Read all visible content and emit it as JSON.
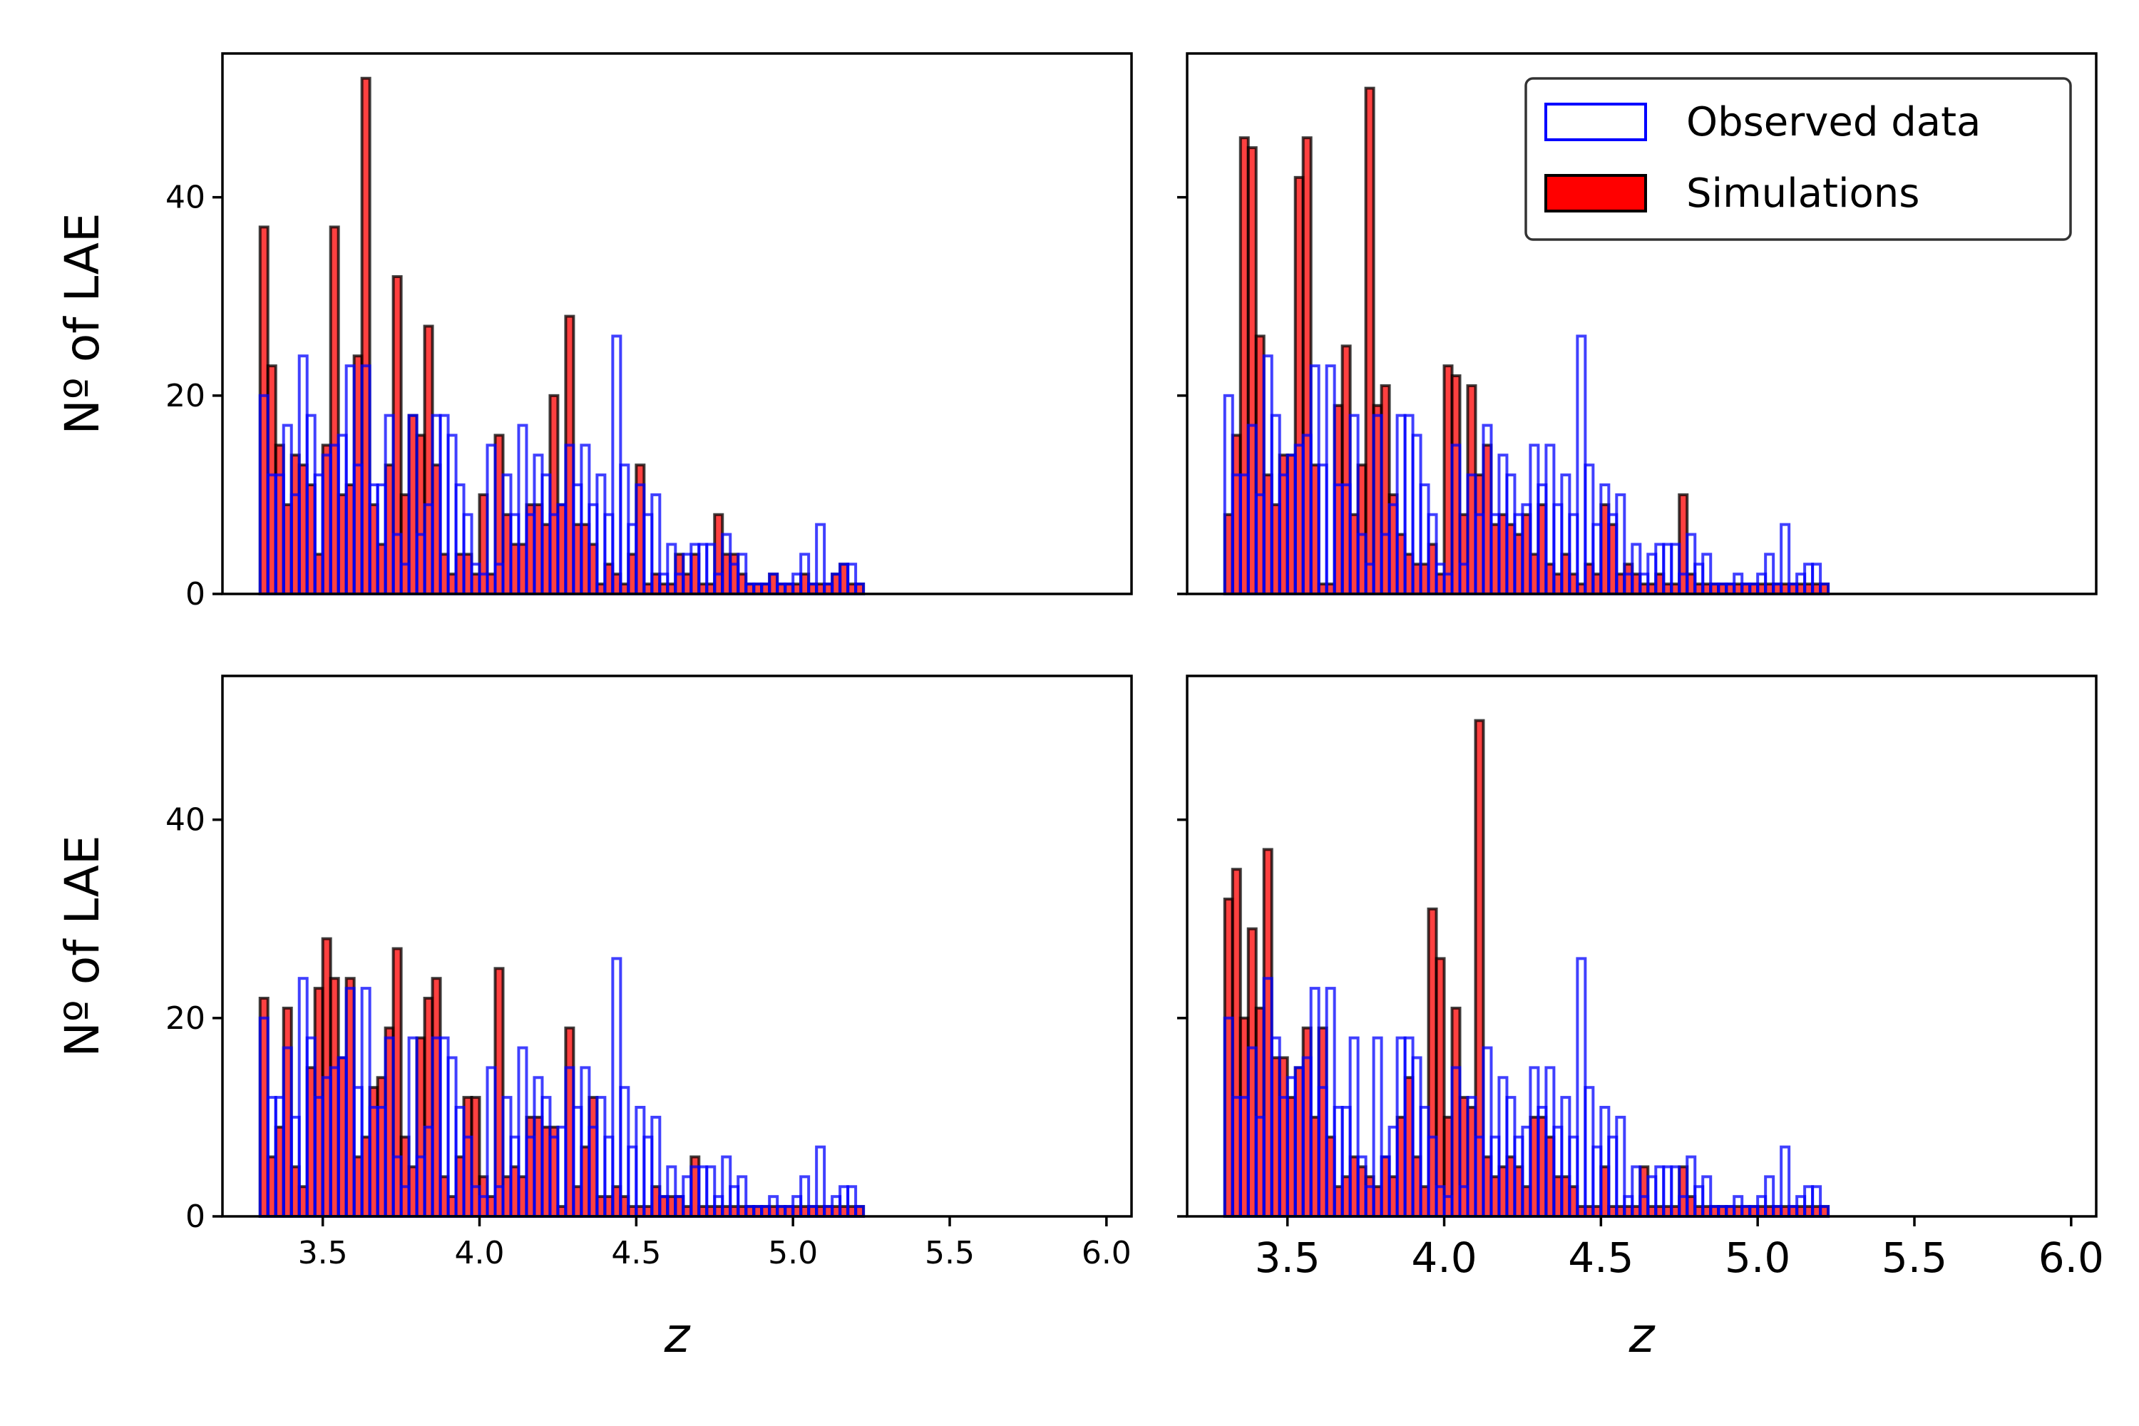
{
  "figure": {
    "legend_location": "upper right of top-right panel"
  },
  "colors": {
    "observed": "#0000ff",
    "simulations": "#ff0000",
    "sim_edge": "#000000"
  },
  "chart_data": [
    {
      "type": "bar",
      "panel": "top-left",
      "xlabel": "",
      "ylabel": "Nº of LAE",
      "xlim": [
        3.18,
        6.08
      ],
      "ylim": [
        0,
        54.5
      ],
      "bin_start": 3.3,
      "bin_width": 0.025,
      "xticks": [],
      "yticks": [
        "0",
        "20",
        "40"
      ],
      "legend": [],
      "series": [
        {
          "name": "Observed data",
          "style": "step",
          "values": [
            20,
            12,
            12,
            17,
            10,
            24,
            18,
            12,
            14,
            15,
            16,
            23,
            13,
            23,
            11,
            11,
            18,
            6,
            3,
            18,
            6,
            9,
            18,
            18,
            16,
            11,
            8,
            3,
            2,
            15,
            3,
            12,
            8,
            17,
            8,
            14,
            12,
            8,
            9,
            15,
            11,
            15,
            9,
            12,
            8,
            26,
            13,
            7,
            11,
            8,
            10,
            2,
            5,
            2,
            4,
            5,
            5,
            5,
            2,
            6,
            3,
            4,
            1,
            1,
            1,
            2,
            1,
            1,
            2,
            4,
            1,
            7,
            1,
            2,
            3,
            3,
            1
          ]
        },
        {
          "name": "Simulations",
          "style": "bar",
          "values": [
            37,
            23,
            15,
            9,
            14,
            13,
            11,
            4,
            15,
            37,
            10,
            11,
            24,
            52,
            9,
            5,
            13,
            32,
            10,
            18,
            16,
            27,
            13,
            4,
            2,
            4,
            4,
            2,
            10,
            2,
            16,
            8,
            5,
            5,
            9,
            9,
            7,
            20,
            9,
            28,
            7,
            7,
            5,
            1,
            3,
            2,
            1,
            4,
            13,
            1,
            2,
            1,
            1,
            4,
            2,
            4,
            1,
            1,
            8,
            4,
            4,
            2,
            1,
            1,
            1,
            2,
            1,
            1,
            1,
            2,
            1,
            1,
            1,
            2,
            3,
            1,
            1
          ]
        }
      ]
    },
    {
      "type": "bar",
      "panel": "top-right",
      "xlabel": "",
      "ylabel": "",
      "xlim": [
        3.18,
        6.08
      ],
      "ylim": [
        0,
        54.5
      ],
      "bin_start": 3.3,
      "bin_width": 0.025,
      "xticks": [],
      "yticks": [],
      "legend": [
        "Observed data",
        "Simulations"
      ],
      "series": [
        {
          "name": "Observed data",
          "style": "step",
          "values": [
            20,
            12,
            12,
            17,
            10,
            24,
            18,
            12,
            14,
            15,
            16,
            23,
            13,
            23,
            11,
            11,
            18,
            6,
            3,
            18,
            6,
            9,
            18,
            18,
            16,
            11,
            8,
            3,
            2,
            15,
            3,
            12,
            8,
            17,
            8,
            14,
            12,
            8,
            9,
            15,
            11,
            15,
            9,
            12,
            8,
            26,
            13,
            7,
            11,
            8,
            10,
            2,
            5,
            2,
            4,
            5,
            5,
            5,
            2,
            6,
            3,
            4,
            1,
            1,
            1,
            2,
            1,
            1,
            2,
            4,
            1,
            7,
            1,
            2,
            3,
            3,
            1
          ]
        },
        {
          "name": "Simulations",
          "style": "bar",
          "values": [
            8,
            16,
            46,
            45,
            26,
            12,
            9,
            14,
            14,
            42,
            46,
            13,
            1,
            1,
            19,
            25,
            8,
            13,
            51,
            19,
            21,
            10,
            6,
            4,
            3,
            3,
            5,
            2,
            23,
            22,
            8,
            21,
            12,
            15,
            7,
            8,
            7,
            6,
            8,
            4,
            9,
            3,
            2,
            4,
            2,
            1,
            3,
            2,
            9,
            7,
            2,
            3,
            2,
            1,
            1,
            2,
            1,
            1,
            10,
            2,
            1,
            1,
            1,
            1,
            1,
            1,
            1,
            1,
            1,
            1,
            1,
            1,
            1,
            1,
            1,
            1,
            1
          ]
        }
      ]
    },
    {
      "type": "bar",
      "panel": "bottom-left",
      "xlabel": "z",
      "ylabel": "Nº of LAE",
      "xlim": [
        3.18,
        6.08
      ],
      "ylim": [
        0,
        54.5
      ],
      "bin_start": 3.3,
      "bin_width": 0.025,
      "xticks": [
        "3.5",
        "4.0",
        "4.5",
        "5.0",
        "5.5",
        "6.0"
      ],
      "yticks": [
        "0",
        "20",
        "40"
      ],
      "legend": [],
      "series": [
        {
          "name": "Observed data",
          "style": "step",
          "values": [
            20,
            12,
            12,
            17,
            10,
            24,
            18,
            12,
            14,
            15,
            16,
            23,
            13,
            23,
            11,
            11,
            18,
            6,
            3,
            18,
            6,
            9,
            18,
            18,
            16,
            11,
            8,
            3,
            2,
            15,
            3,
            12,
            8,
            17,
            8,
            14,
            12,
            8,
            9,
            15,
            11,
            15,
            9,
            12,
            8,
            26,
            13,
            7,
            11,
            8,
            10,
            2,
            5,
            2,
            4,
            5,
            5,
            5,
            2,
            6,
            3,
            4,
            1,
            1,
            1,
            2,
            1,
            1,
            2,
            4,
            1,
            7,
            1,
            2,
            3,
            3,
            1
          ]
        },
        {
          "name": "Simulations",
          "style": "bar",
          "values": [
            22,
            6,
            9,
            21,
            5,
            3,
            15,
            23,
            28,
            24,
            16,
            24,
            6,
            8,
            13,
            14,
            19,
            27,
            8,
            5,
            18,
            22,
            24,
            4,
            2,
            6,
            12,
            12,
            4,
            2,
            25,
            4,
            5,
            4,
            10,
            10,
            9,
            9,
            1,
            19,
            3,
            7,
            12,
            2,
            2,
            3,
            2,
            1,
            1,
            1,
            3,
            2,
            2,
            2,
            1,
            6,
            1,
            1,
            1,
            1,
            1,
            1,
            1,
            1,
            1,
            1,
            1,
            1,
            1,
            1,
            1,
            1,
            1,
            1,
            1,
            1,
            1
          ]
        }
      ]
    },
    {
      "type": "bar",
      "panel": "bottom-right",
      "xlabel": "z",
      "ylabel": "",
      "xlim": [
        3.18,
        6.08
      ],
      "ylim": [
        0,
        54.5
      ],
      "bin_start": 3.3,
      "bin_width": 0.025,
      "xticks": [
        "3.5",
        "4.0",
        "4.5",
        "5.0",
        "5.5",
        "6.0"
      ],
      "yticks": [],
      "legend": [],
      "series": [
        {
          "name": "Observed data",
          "style": "step",
          "values": [
            20,
            12,
            12,
            17,
            10,
            24,
            18,
            12,
            14,
            15,
            16,
            23,
            13,
            23,
            11,
            11,
            18,
            6,
            3,
            18,
            6,
            9,
            18,
            18,
            16,
            11,
            8,
            3,
            2,
            15,
            3,
            12,
            8,
            17,
            8,
            14,
            12,
            8,
            9,
            15,
            11,
            15,
            9,
            12,
            8,
            26,
            13,
            7,
            11,
            8,
            10,
            2,
            5,
            2,
            4,
            5,
            5,
            5,
            2,
            6,
            3,
            4,
            1,
            1,
            1,
            2,
            1,
            1,
            2,
            4,
            1,
            7,
            1,
            2,
            3,
            3,
            1
          ]
        },
        {
          "name": "Simulations",
          "style": "bar",
          "values": [
            32,
            35,
            20,
            29,
            21,
            37,
            16,
            16,
            12,
            15,
            19,
            10,
            19,
            8,
            3,
            4,
            6,
            5,
            4,
            3,
            6,
            4,
            10,
            14,
            6,
            3,
            31,
            26,
            10,
            21,
            12,
            11,
            50,
            6,
            4,
            5,
            6,
            5,
            3,
            10,
            10,
            8,
            4,
            4,
            3,
            1,
            1,
            1,
            5,
            1,
            1,
            1,
            1,
            5,
            1,
            1,
            1,
            1,
            5,
            2,
            1,
            1,
            1,
            1,
            1,
            1,
            1,
            1,
            1,
            1,
            1,
            1,
            1,
            1,
            1,
            1,
            1
          ]
        }
      ]
    }
  ]
}
